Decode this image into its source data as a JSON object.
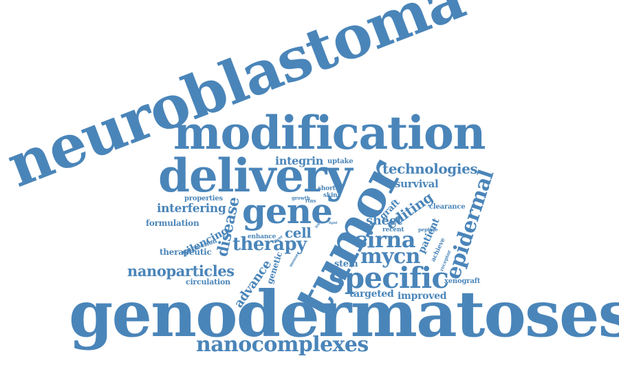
{
  "color": "#4a85b9",
  "words": {
    "neuroblastoma": "neuroblastoma",
    "genodermatoses": "genodermatoses",
    "modification": "modification",
    "delivery": "delivery",
    "tumor": "tumor",
    "gene": "gene",
    "specific": "specific",
    "nanocomplexes": "nanocomplexes",
    "sirna": "sirna",
    "epidermal": "epidermal",
    "mycn": "mycn",
    "therapy": "therapy",
    "technologies": "technologies",
    "editing": "editing",
    "nanoparticles": "nanoparticles",
    "disease": "disease",
    "cell": "cell",
    "sheet": "sheet",
    "interfering": "interfering",
    "advance": "advance",
    "integrin": "integrin",
    "survival": "survival",
    "silencing": "silencing",
    "patient": "patient",
    "graft": "graft",
    "stem": "stem",
    "targeted": "targeted",
    "improved": "improved",
    "formulation": "formulation",
    "therapeutic": "therapeutic",
    "circulation": "circulation",
    "properties": "properties",
    "clearance": "clearance",
    "xenograft": "xenograft",
    "uptake": "uptake",
    "genetic": "genetic",
    "short": "short",
    "skin": "skin",
    "enhance": "enhance",
    "correction": "correction",
    "recent": "recent",
    "peptide": "peptide",
    "achieve": "achieve",
    "receptor": "receptor",
    "growth": "growth",
    "rtns": "rtns",
    "liver": "liver",
    "lipid": "lipid",
    "mouse": "mouse",
    "lnp": "lnp"
  }
}
